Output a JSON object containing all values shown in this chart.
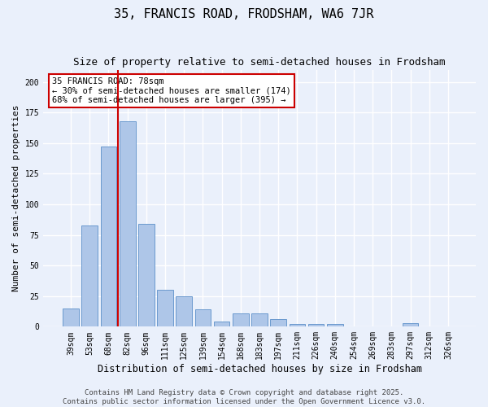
{
  "title": "35, FRANCIS ROAD, FRODSHAM, WA6 7JR",
  "subtitle": "Size of property relative to semi-detached houses in Frodsham",
  "xlabel": "Distribution of semi-detached houses by size in Frodsham",
  "ylabel": "Number of semi-detached properties",
  "categories": [
    "39sqm",
    "53sqm",
    "68sqm",
    "82sqm",
    "96sqm",
    "111sqm",
    "125sqm",
    "139sqm",
    "154sqm",
    "168sqm",
    "183sqm",
    "197sqm",
    "211sqm",
    "226sqm",
    "240sqm",
    "254sqm",
    "269sqm",
    "283sqm",
    "297sqm",
    "312sqm",
    "326sqm"
  ],
  "values": [
    15,
    83,
    147,
    168,
    84,
    30,
    25,
    14,
    4,
    11,
    11,
    6,
    2,
    2,
    2,
    0,
    0,
    0,
    3,
    0,
    0
  ],
  "bar_color": "#aec6e8",
  "bar_edge_color": "#5b8fc9",
  "background_color": "#eaf0fb",
  "grid_color": "#ffffff",
  "vline_x_index": 2.5,
  "vline_color": "#cc0000",
  "annotation_text": "35 FRANCIS ROAD: 78sqm\n← 30% of semi-detached houses are smaller (174)\n68% of semi-detached houses are larger (395) →",
  "annotation_box_color": "#ffffff",
  "annotation_box_edge": "#cc0000",
  "footer": "Contains HM Land Registry data © Crown copyright and database right 2025.\nContains public sector information licensed under the Open Government Licence v3.0.",
  "ylim": [
    0,
    210
  ],
  "title_fontsize": 11,
  "subtitle_fontsize": 9,
  "xlabel_fontsize": 8.5,
  "ylabel_fontsize": 8,
  "tick_fontsize": 7,
  "footer_fontsize": 6.5,
  "annot_fontsize": 7.5
}
